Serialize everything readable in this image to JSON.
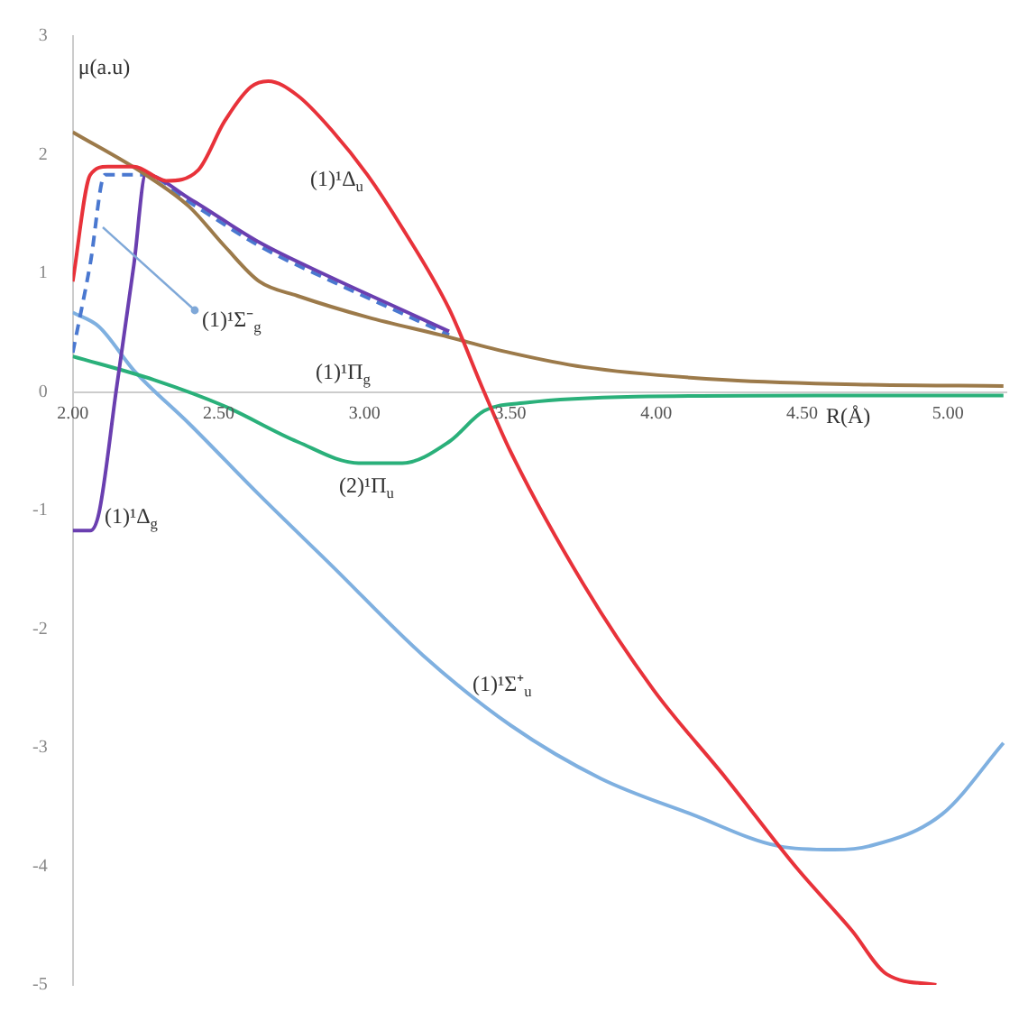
{
  "chart_data": {
    "type": "line",
    "xlabel": "R(Å)",
    "ylabel": "μ(a.u)",
    "xlim": [
      2.0,
      5.2
    ],
    "ylim": [
      -5,
      3
    ],
    "xticks": [
      {
        "value": 2,
        "label": "2.00"
      },
      {
        "value": 2.5,
        "label": "2.50"
      },
      {
        "value": 3,
        "label": "3.00"
      },
      {
        "value": 3.5,
        "label": "3.50"
      },
      {
        "value": 4,
        "label": "4.00"
      },
      {
        "value": 4.5,
        "label": "4.50"
      },
      {
        "value": 5,
        "label": "5.00"
      }
    ],
    "yticks": [
      3,
      2,
      1,
      0,
      -1,
      -2,
      -3,
      -4,
      -5
    ],
    "grid": false,
    "legend": false,
    "marker": "none",
    "series": [
      {
        "color": "#e8323a",
        "line_style": "solid",
        "x": [
          2.0,
          2.06,
          2.12,
          2.21,
          2.32,
          2.43,
          2.52,
          2.61,
          2.67,
          2.77,
          2.89,
          3.01,
          3.13,
          3.29,
          3.41,
          3.5,
          3.75,
          3.99,
          4.24,
          4.48,
          4.67,
          4.79,
          4.96
        ],
        "values": [
          0.93,
          1.83,
          1.9,
          1.9,
          1.78,
          1.87,
          2.28,
          2.57,
          2.62,
          2.5,
          2.2,
          1.83,
          1.38,
          0.7,
          0,
          -0.5,
          -1.62,
          -2.51,
          -3.26,
          -4.01,
          -4.54,
          -4.91,
          -5.0
        ]
      },
      {
        "color": "#9c7a4a",
        "line_style": "solid",
        "x": [
          2.0,
          2.25,
          2.4,
          2.52,
          2.64,
          2.77,
          3.01,
          3.26,
          3.5,
          3.75,
          4.24,
          4.73,
          5.19
        ],
        "values": [
          2.19,
          1.83,
          1.56,
          1.23,
          0.93,
          0.81,
          0.63,
          0.48,
          0.33,
          0.21,
          0.1,
          0.06,
          0.05
        ]
      },
      {
        "color": "#6a3fb0",
        "line_style": "solid",
        "x": [
          2.0,
          2.06,
          2.09,
          2.15,
          2.21,
          2.25,
          2.4,
          2.64,
          2.89,
          3.13,
          3.29
        ],
        "values": [
          -1.17,
          -1.17,
          -1.02,
          0.03,
          1.08,
          1.83,
          1.63,
          1.26,
          0.96,
          0.69,
          0.51
        ]
      },
      {
        "color": "#4a78d0",
        "line_style": "dashed",
        "x": [
          2.0,
          2.06,
          2.11,
          2.25,
          2.4,
          2.64,
          2.89,
          3.13,
          3.29
        ],
        "values": [
          0.33,
          1.08,
          1.83,
          1.83,
          1.6,
          1.23,
          0.93,
          0.66,
          0.48
        ]
      },
      {
        "color": "#2ab07a",
        "line_style": "solid",
        "x": [
          2.0,
          2.28,
          2.52,
          2.77,
          2.98,
          3.13,
          3.29,
          3.41,
          3.56,
          3.93,
          4.55,
          5.19
        ],
        "values": [
          0.3,
          0.1,
          -0.12,
          -0.42,
          -0.6,
          -0.6,
          -0.42,
          -0.16,
          -0.09,
          -0.04,
          -0.03,
          -0.03
        ]
      },
      {
        "color": "#7fb0e0",
        "line_style": "solid",
        "x": [
          2.0,
          2.09,
          2.21,
          2.4,
          2.64,
          2.89,
          3.2,
          3.5,
          3.81,
          4.12,
          4.42,
          4.61,
          4.73,
          4.98,
          5.19
        ],
        "values": [
          0.67,
          0.55,
          0.18,
          -0.27,
          -0.87,
          -1.47,
          -2.22,
          -2.81,
          -3.26,
          -3.56,
          -3.83,
          -3.86,
          -3.83,
          -3.56,
          -2.96
        ]
      }
    ],
    "annotations": [
      "(1)¹Δ$_{u}$",
      "(1)¹Σ⁻$_{g}$",
      "(1)¹Π$_{g}$",
      "(2)¹Π$_{u}$",
      "(1)¹Δ$_{g}$",
      "(1)¹Σ⁺$_{u}$"
    ]
  }
}
